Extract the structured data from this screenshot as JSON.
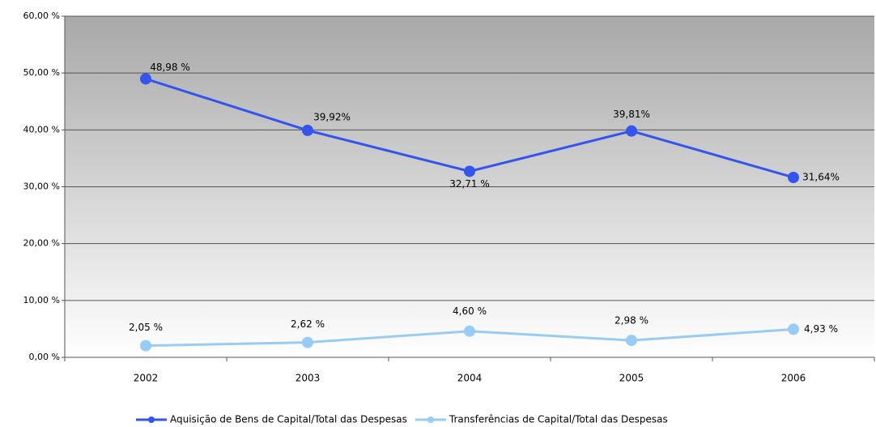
{
  "chart_data": {
    "type": "line",
    "categories": [
      "2002",
      "2003",
      "2004",
      "2005",
      "2006"
    ],
    "series": [
      {
        "name": "Aquisição de Bens de Capital/Total das Despesas",
        "color": "#3355ee",
        "values": [
          48.98,
          39.92,
          32.71,
          39.81,
          31.64
        ],
        "value_labels": [
          "48,98 %",
          "39,92%",
          "32,71 %",
          "39,81%",
          "31,64%"
        ]
      },
      {
        "name": "Transferências de Capital/Total das Despesas",
        "color": "#99ccf5",
        "values": [
          2.05,
          2.62,
          4.6,
          2.98,
          4.93
        ],
        "value_labels": [
          "2,05 %",
          "2,62 %",
          "4,60 %",
          "2,98 %",
          "4,93 %"
        ]
      }
    ],
    "ylim": [
      0,
      60
    ],
    "yticks": [
      {
        "value": 0,
        "label": "0,00 %"
      },
      {
        "value": 10,
        "label": "10,00 %"
      },
      {
        "value": 20,
        "label": "20,00 %"
      },
      {
        "value": 30,
        "label": "30,00 %"
      },
      {
        "value": 40,
        "label": "40,00 %"
      },
      {
        "value": 50,
        "label": "50,00 %"
      },
      {
        "value": 60,
        "label": "60,00 %"
      }
    ],
    "grid": true,
    "legend": "bottom"
  }
}
